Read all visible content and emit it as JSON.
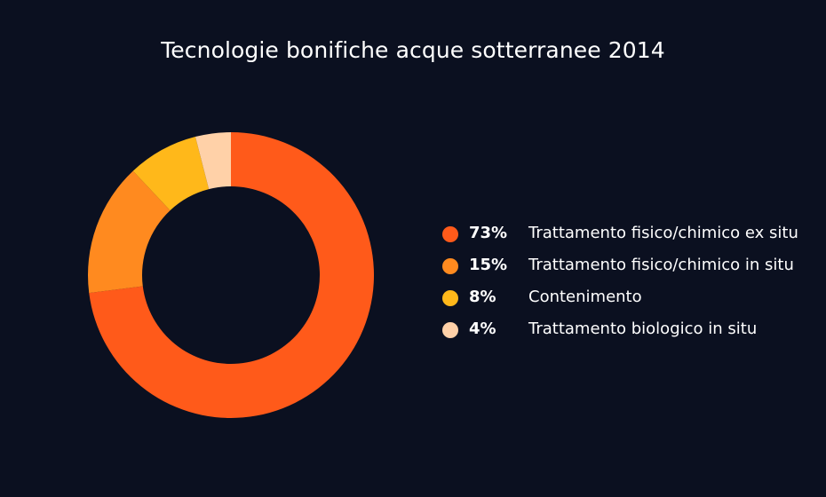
{
  "chart_data": {
    "type": "pie",
    "title": "Tecnologie bonifiche acque sotterranee 2014",
    "donut": true,
    "legend_position": "right",
    "categories": [
      "Trattamento fisico/chimico ex situ",
      "Trattamento fisico/chimico in situ",
      "Contenimento",
      "Trattamento biologico in situ"
    ],
    "values": [
      73,
      15,
      8,
      4
    ],
    "value_labels": [
      "73%",
      "15%",
      "8%",
      "4%"
    ],
    "colors": [
      "#ff5a1a",
      "#ff8a1f",
      "#ffb81a",
      "#ffd1a8"
    ]
  }
}
